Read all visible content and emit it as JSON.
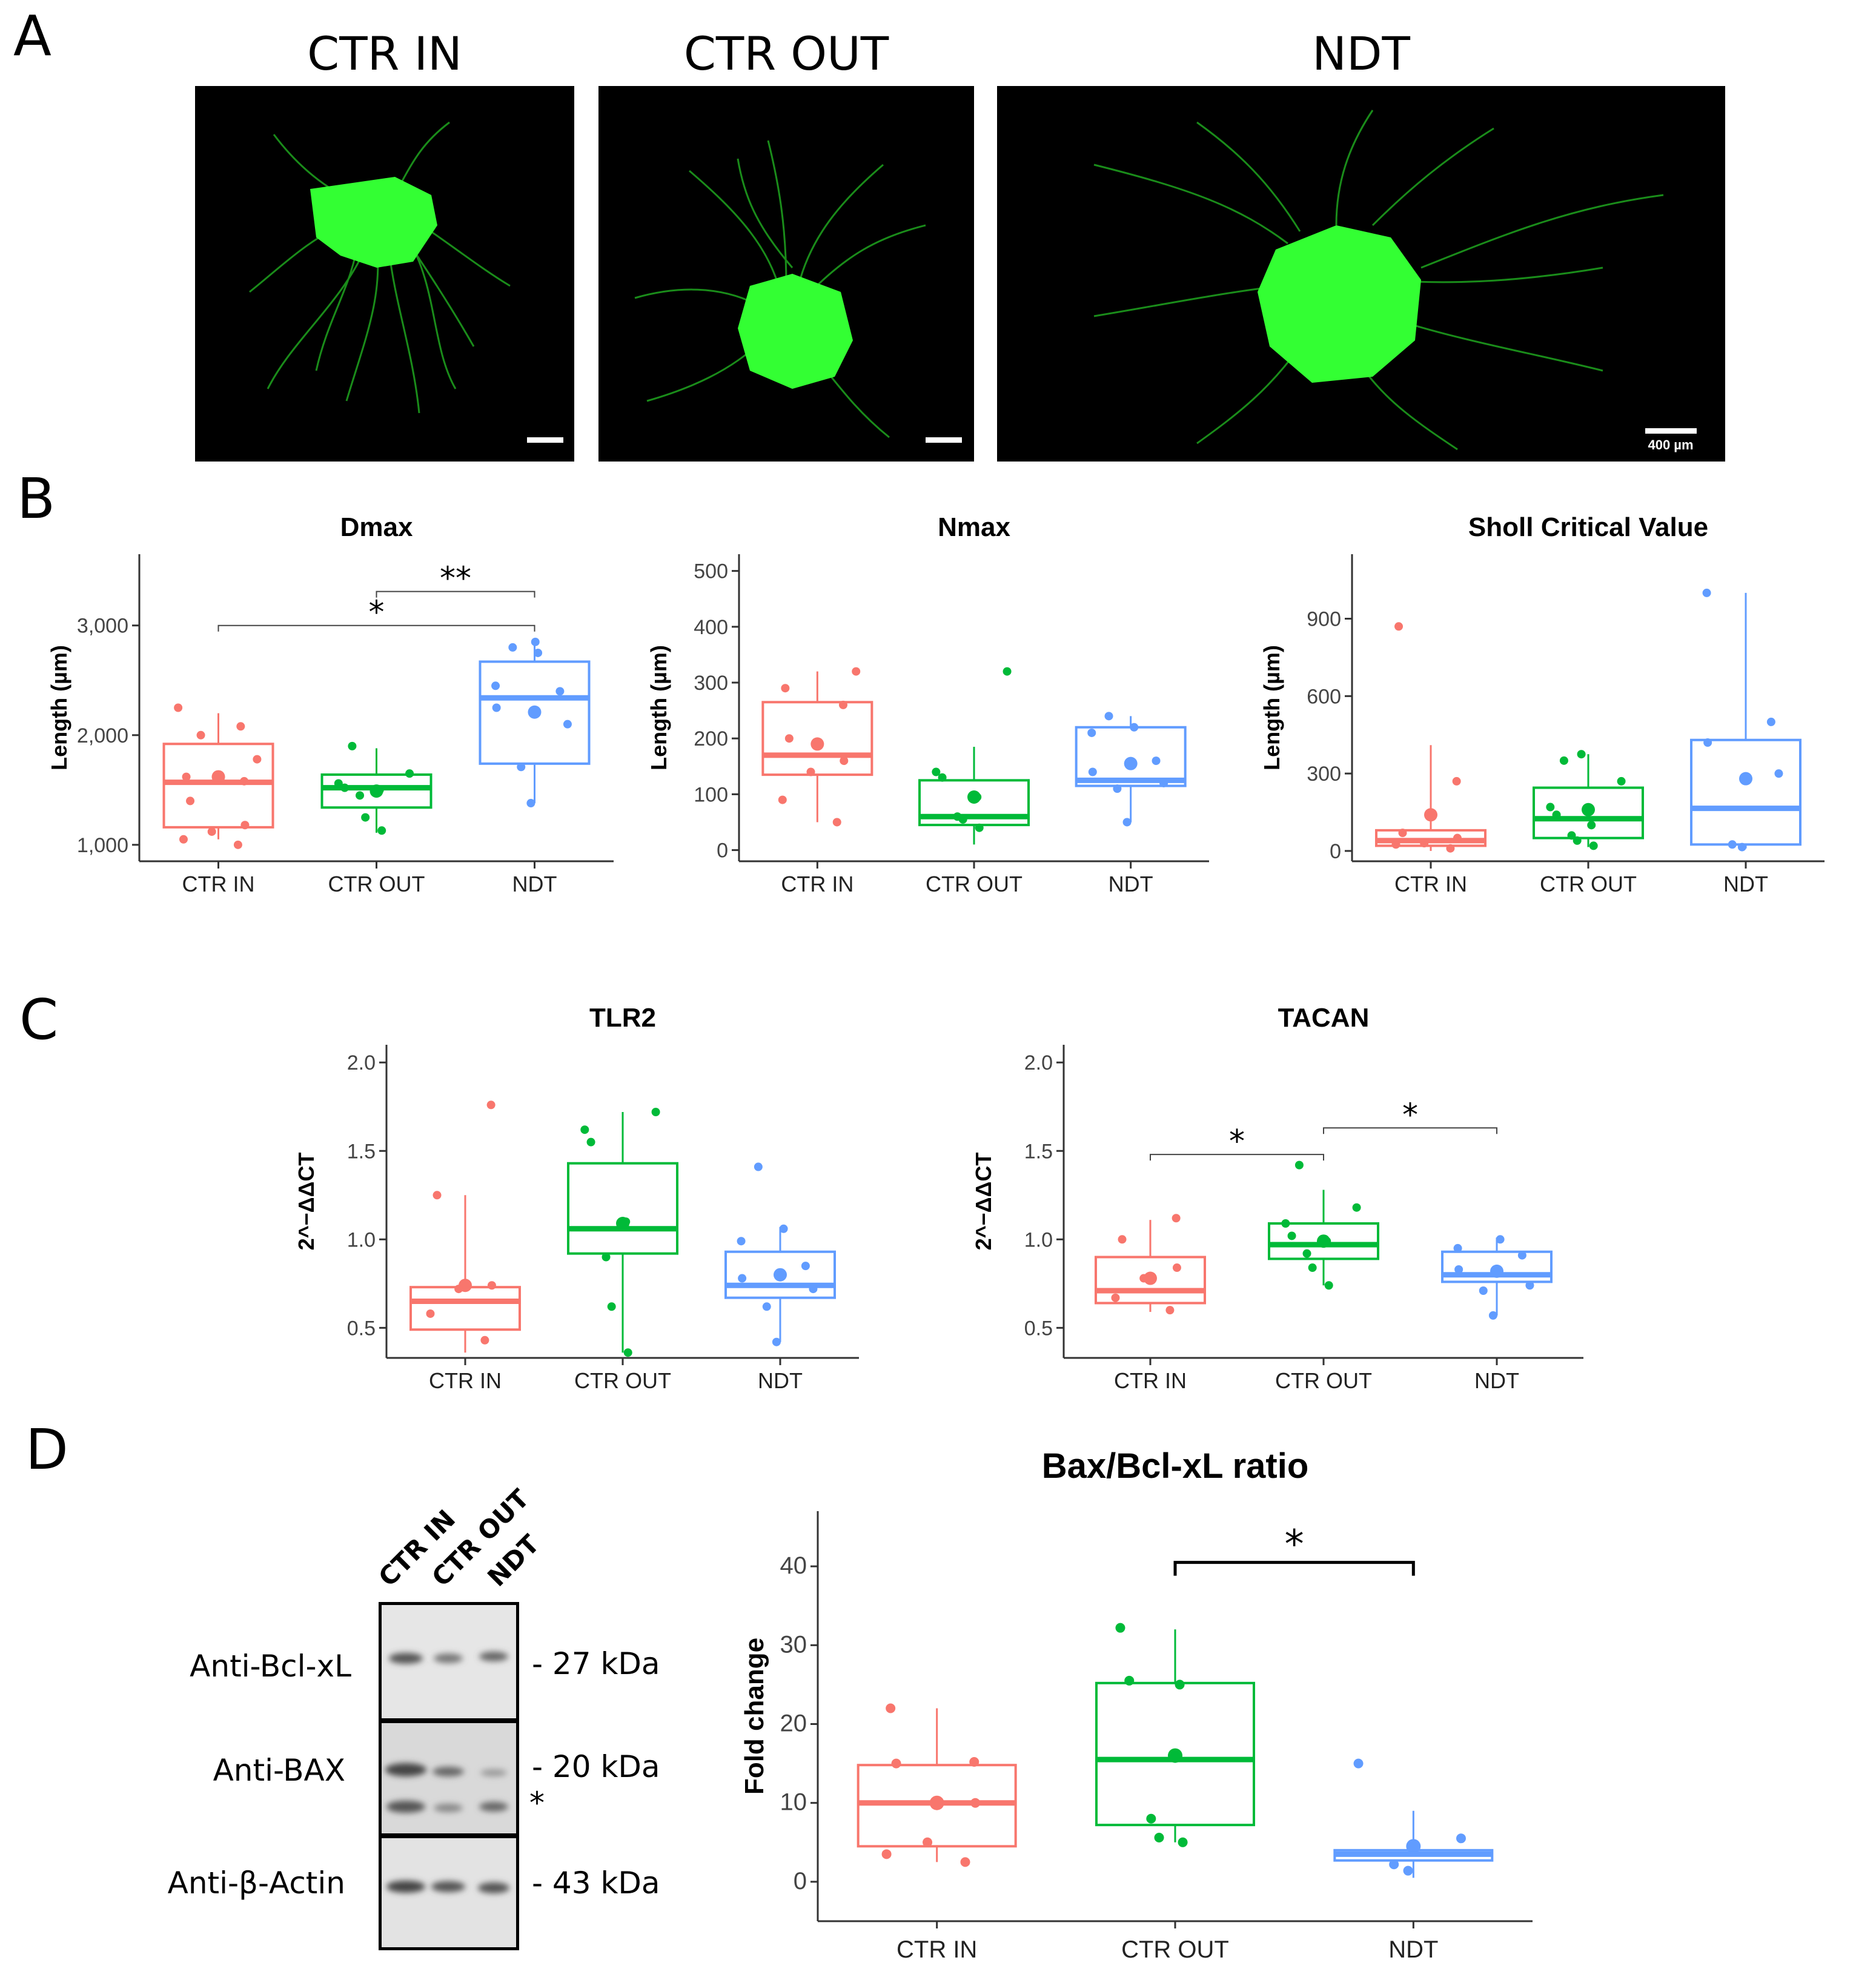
{
  "panels": {
    "A": {
      "letter": "A",
      "images": [
        {
          "title": "CTR IN"
        },
        {
          "title": "CTR OUT"
        },
        {
          "title": "NDT",
          "scale_label": "400 µm"
        }
      ]
    },
    "B": {
      "letter": "B"
    },
    "C": {
      "letter": "C"
    },
    "D": {
      "letter": "D",
      "blot": {
        "lanes": [
          "CTR IN",
          "CTR OUT",
          "NDT"
        ],
        "rows": [
          {
            "label": "Anti-Bcl-xL",
            "kda": "- 27 kDa"
          },
          {
            "label": "Anti-BAX",
            "kda": "- 20 kDa",
            "note": "*"
          },
          {
            "label": "Anti-β-Actin",
            "kda": "- 43 kDa"
          }
        ]
      }
    }
  },
  "colors": {
    "CTR IN": "#F8766D",
    "CTR OUT": "#00BA38",
    "NDT": "#619CFF"
  },
  "chart_data": [
    {
      "id": "dmax",
      "type": "box",
      "title": "Dmax",
      "xlabel": "",
      "ylabel": "Length (µm)",
      "categories": [
        "CTR IN",
        "CTR OUT",
        "NDT"
      ],
      "ylim": [
        850,
        3650
      ],
      "yticks": [
        1000,
        2000,
        3000
      ],
      "ytick_labels": [
        "1,000",
        "2,000",
        "3,000"
      ],
      "boxes": [
        {
          "q1": 1160,
          "median": 1570,
          "q3": 1920,
          "whisker_low": 1050,
          "whisker_high": 2200,
          "mean": 1620
        },
        {
          "q1": 1340,
          "median": 1520,
          "q3": 1640,
          "whisker_low": 1110,
          "whisker_high": 1880,
          "mean": 1490
        },
        {
          "q1": 1740,
          "median": 2340,
          "q3": 2670,
          "whisker_low": 1380,
          "whisker_high": 2880,
          "mean": 2210
        }
      ],
      "points": [
        [
          1000,
          1050,
          1120,
          1180,
          1400,
          1580,
          1620,
          1780,
          2000,
          2080,
          2250
        ],
        [
          1130,
          1250,
          1450,
          1500,
          1520,
          1560,
          1650,
          1900
        ],
        [
          1380,
          1710,
          2100,
          2250,
          2400,
          2450,
          2750,
          2800,
          2850
        ]
      ],
      "annotations": [
        {
          "from": 0,
          "to": 2,
          "label": "*",
          "y": 3000
        },
        {
          "from": 1,
          "to": 2,
          "label": "**",
          "y": 3310
        }
      ]
    },
    {
      "id": "nmax",
      "type": "box",
      "title": "Nmax",
      "xlabel": "",
      "ylabel": "Length (µm)",
      "categories": [
        "CTR IN",
        "CTR OUT",
        "NDT"
      ],
      "ylim": [
        -20,
        530
      ],
      "yticks": [
        0,
        100,
        200,
        300,
        400,
        500
      ],
      "ytick_labels": [
        "0",
        "100",
        "200",
        "300",
        "400",
        "500"
      ],
      "boxes": [
        {
          "q1": 135,
          "median": 170,
          "q3": 265,
          "whisker_low": 50,
          "whisker_high": 320,
          "mean": 190
        },
        {
          "q1": 45,
          "median": 60,
          "q3": 125,
          "whisker_low": 10,
          "whisker_high": 185,
          "mean": 95
        },
        {
          "q1": 115,
          "median": 125,
          "q3": 220,
          "whisker_low": 50,
          "whisker_high": 240,
          "mean": 155
        }
      ],
      "points": [
        [
          50,
          90,
          140,
          160,
          200,
          260,
          290,
          320
        ],
        [
          40,
          55,
          60,
          95,
          130,
          140,
          320
        ],
        [
          50,
          110,
          120,
          140,
          160,
          210,
          220,
          240
        ]
      ]
    },
    {
      "id": "sholl",
      "type": "box",
      "title": "Sholl Critical Value",
      "xlabel": "",
      "ylabel": "Length (µm)",
      "categories": [
        "CTR IN",
        "CTR OUT",
        "NDT"
      ],
      "ylim": [
        -40,
        1150
      ],
      "yticks": [
        0,
        300,
        600,
        900
      ],
      "ytick_labels": [
        "0",
        "300",
        "600",
        "900"
      ],
      "boxes": [
        {
          "q1": 20,
          "median": 40,
          "q3": 80,
          "whisker_low": 0,
          "whisker_high": 410,
          "mean": 140
        },
        {
          "q1": 50,
          "median": 125,
          "q3": 245,
          "whisker_low": 15,
          "whisker_high": 375,
          "mean": 160
        },
        {
          "q1": 25,
          "median": 165,
          "q3": 430,
          "whisker_low": 10,
          "whisker_high": 1000,
          "mean": 280
        }
      ],
      "points": [
        [
          10,
          25,
          30,
          50,
          70,
          270,
          870
        ],
        [
          20,
          40,
          60,
          100,
          140,
          170,
          270,
          350,
          375
        ],
        [
          15,
          25,
          300,
          420,
          500,
          1000
        ]
      ]
    },
    {
      "id": "tlr2",
      "type": "box",
      "title": "TLR2",
      "xlabel": "",
      "ylabel": "2^−ΔΔCT",
      "categories": [
        "CTR IN",
        "CTR OUT",
        "NDT"
      ],
      "ylim": [
        0.33,
        2.1
      ],
      "yticks": [
        0.5,
        1.0,
        1.5,
        2.0
      ],
      "ytick_labels": [
        "0.5",
        "1.0",
        "1.5",
        "2.0"
      ],
      "boxes": [
        {
          "q1": 0.49,
          "median": 0.65,
          "q3": 0.73,
          "whisker_low": 0.36,
          "whisker_high": 1.25,
          "mean": 0.74
        },
        {
          "q1": 0.92,
          "median": 1.06,
          "q3": 1.43,
          "whisker_low": 0.36,
          "whisker_high": 1.72,
          "mean": 1.09
        },
        {
          "q1": 0.67,
          "median": 0.74,
          "q3": 0.93,
          "whisker_low": 0.42,
          "whisker_high": 1.07,
          "mean": 0.8
        }
      ],
      "points": [
        [
          0.43,
          0.58,
          0.72,
          0.74,
          1.25,
          1.76
        ],
        [
          0.36,
          0.62,
          0.9,
          1.1,
          1.55,
          1.62,
          1.72
        ],
        [
          0.42,
          0.62,
          0.72,
          0.78,
          0.85,
          0.99,
          1.06,
          1.41
        ]
      ]
    },
    {
      "id": "tacan",
      "type": "box",
      "title": "TACAN",
      "xlabel": "",
      "ylabel": "2^−ΔΔCT",
      "categories": [
        "CTR IN",
        "CTR OUT",
        "NDT"
      ],
      "ylim": [
        0.33,
        2.1
      ],
      "yticks": [
        0.5,
        1.0,
        1.5,
        2.0
      ],
      "ytick_labels": [
        "0.5",
        "1.0",
        "1.5",
        "2.0"
      ],
      "boxes": [
        {
          "q1": 0.64,
          "median": 0.71,
          "q3": 0.9,
          "whisker_low": 0.59,
          "whisker_high": 1.11,
          "mean": 0.78
        },
        {
          "q1": 0.89,
          "median": 0.97,
          "q3": 1.09,
          "whisker_low": 0.74,
          "whisker_high": 1.28,
          "mean": 0.99
        },
        {
          "q1": 0.76,
          "median": 0.8,
          "q3": 0.93,
          "whisker_low": 0.57,
          "whisker_high": 1.01,
          "mean": 0.82
        }
      ],
      "points": [
        [
          0.6,
          0.67,
          0.78,
          0.84,
          1.0,
          1.12
        ],
        [
          0.74,
          0.84,
          0.92,
          0.99,
          1.02,
          1.09,
          1.18,
          1.42
        ],
        [
          0.57,
          0.71,
          0.74,
          0.83,
          0.91,
          0.95,
          1.0
        ]
      ],
      "annotations": [
        {
          "from": 0,
          "to": 1,
          "label": "*",
          "y": 1.48
        },
        {
          "from": 1,
          "to": 2,
          "label": "*",
          "y": 1.63
        }
      ]
    },
    {
      "id": "baxbcl",
      "type": "box",
      "title": "Bax/Bcl-xL ratio",
      "xlabel": "",
      "ylabel": "Fold change",
      "categories": [
        "CTR IN",
        "CTR OUT",
        "NDT"
      ],
      "ylim": [
        -5,
        47
      ],
      "yticks": [
        0,
        10,
        20,
        30,
        40
      ],
      "ytick_labels": [
        "0",
        "10",
        "20",
        "30",
        "40"
      ],
      "boxes": [
        {
          "q1": 4.5,
          "median": 10,
          "q3": 14.8,
          "whisker_low": 2.5,
          "whisker_high": 22,
          "mean": 10
        },
        {
          "q1": 7.2,
          "median": 15.5,
          "q3": 25.2,
          "whisker_low": 5,
          "whisker_high": 32,
          "mean": 16
        },
        {
          "q1": 2.7,
          "median": 3.5,
          "q3": 4.0,
          "whisker_low": 0.5,
          "whisker_high": 9,
          "mean": 4.5
        }
      ],
      "points": [
        [
          2.5,
          3.5,
          5.0,
          10,
          15,
          15.2,
          22
        ],
        [
          5,
          5.6,
          8,
          25,
          25.5,
          32.2
        ],
        [
          1.4,
          2.2,
          5.5,
          15
        ]
      ],
      "annotations": [
        {
          "from": 1,
          "to": 2,
          "label": "*",
          "y": 40.5,
          "style": "bracket"
        }
      ]
    }
  ]
}
